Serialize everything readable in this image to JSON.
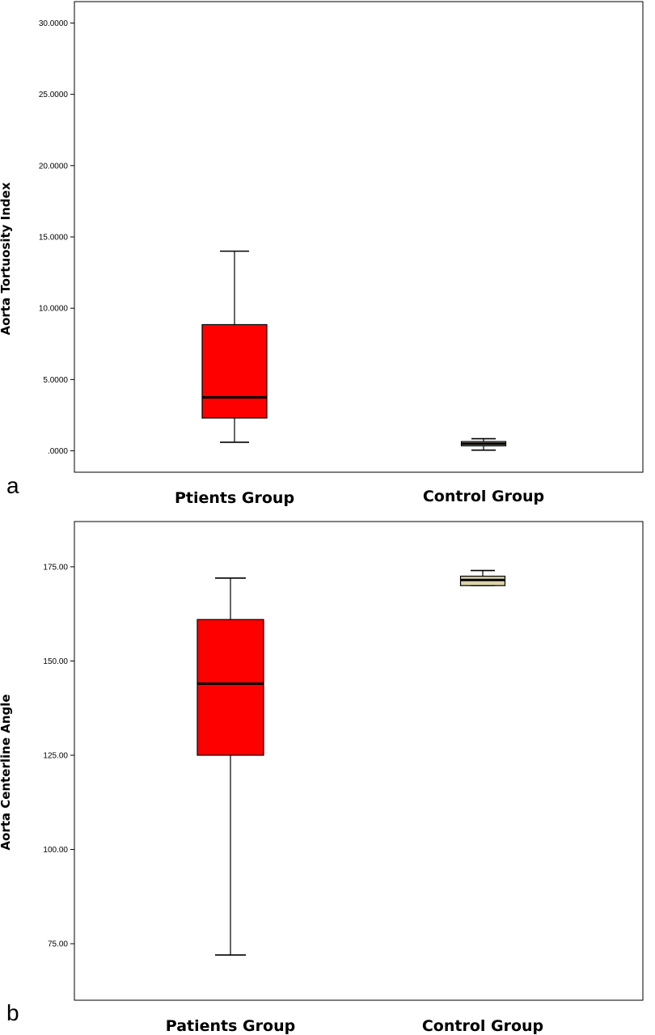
{
  "chart_data": [
    {
      "type": "box",
      "panel_label": "a",
      "ylabel": "Aorta Tortuosity Index",
      "ylim": [
        -1.5,
        31.5
      ],
      "yticks": [
        0,
        5,
        10,
        15,
        20,
        25,
        30
      ],
      "ytick_labels": [
        ".0000",
        "5.0000",
        "10.0000",
        "15.0000",
        "20.0000",
        "25.0000",
        "30.0000"
      ],
      "categories": [
        "Ptients Group",
        "Control Group"
      ],
      "boxes": [
        {
          "name": "Ptients Group",
          "min": 0.6,
          "q1": 2.3,
          "median": 3.75,
          "q3": 8.85,
          "max": 14.0,
          "color": "#ff0000"
        },
        {
          "name": "Control Group",
          "min": 0.05,
          "q1": 0.35,
          "median": 0.5,
          "q3": 0.65,
          "max": 0.85,
          "color": "#d9d3a8"
        }
      ]
    },
    {
      "type": "box",
      "panel_label": "b",
      "ylabel": "Aorta Centerline Angle",
      "ylim": [
        60,
        187
      ],
      "yticks": [
        75,
        100,
        125,
        150,
        175
      ],
      "ytick_labels": [
        "75.00",
        "100.00",
        "125.00",
        "150.00",
        "175.00"
      ],
      "categories": [
        "Patients Group",
        "Control Group"
      ],
      "boxes": [
        {
          "name": "Patients Group",
          "min": 72,
          "q1": 125,
          "median": 144,
          "q3": 161,
          "max": 172,
          "color": "#ff0000"
        },
        {
          "name": "Control Group",
          "min": 170,
          "q1": 170,
          "median": 171.5,
          "q3": 172.5,
          "max": 174,
          "color": "#d9d3a8"
        }
      ]
    }
  ]
}
